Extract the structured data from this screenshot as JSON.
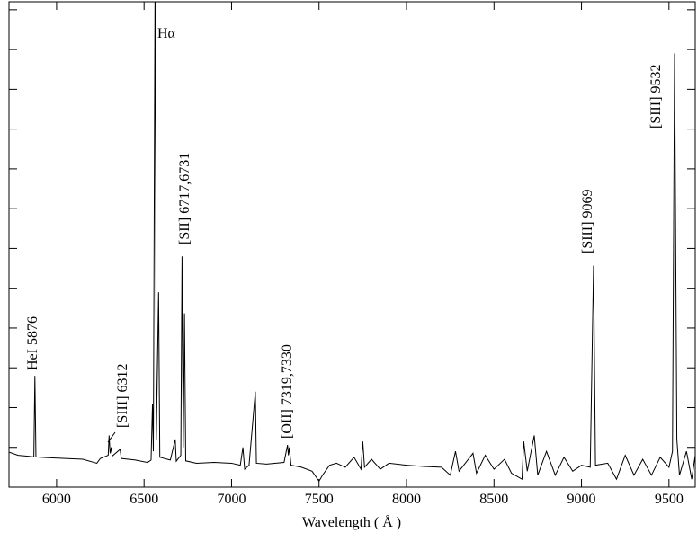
{
  "chart_data": {
    "type": "line",
    "x_label": "Wavelength ( Å )",
    "xlim": [
      5728,
      9650
    ],
    "xticks": [
      6000,
      6500,
      7000,
      7500,
      8000,
      8500,
      9000,
      9500
    ],
    "ylim": [
      0,
      12.2
    ],
    "yticks": [
      1,
      2,
      3,
      4,
      5,
      6,
      7,
      8,
      9,
      10,
      11,
      12
    ],
    "color": "#000000",
    "annotations": [
      "HeI 5876",
      "[SIII] 6312",
      "Hα",
      "[SII] 6717,6731",
      "[OII] 7319,7330",
      "[SIII] 9069",
      "[SIII] 9532"
    ],
    "x": [
      5728,
      5780,
      5830,
      5870,
      5876,
      5882,
      5950,
      6050,
      6150,
      6230,
      6250,
      6295,
      6300,
      6306,
      6312,
      6318,
      6363,
      6370,
      6450,
      6520,
      6540,
      6548,
      6553,
      6563,
      6570,
      6583,
      6590,
      6650,
      6678,
      6684,
      6710,
      6717,
      6724,
      6731,
      6738,
      6800,
      6900,
      7000,
      7050,
      7065,
      7075,
      7100,
      7136,
      7142,
      7200,
      7300,
      7320,
      7325,
      7330,
      7340,
      7400,
      7460,
      7500,
      7520,
      7560,
      7600,
      7650,
      7700,
      7740,
      7750,
      7760,
      7800,
      7850,
      7900,
      8000,
      8100,
      8200,
      8250,
      8280,
      8300,
      8380,
      8400,
      8450,
      8500,
      8560,
      8600,
      8660,
      8670,
      8690,
      8730,
      8750,
      8800,
      8850,
      8900,
      8950,
      9000,
      9050,
      9069,
      9080,
      9150,
      9200,
      9250,
      9300,
      9350,
      9400,
      9450,
      9500,
      9520,
      9532,
      9545,
      9560,
      9600,
      9630,
      9650
    ],
    "values": [
      0.88,
      0.8,
      0.78,
      0.76,
      2.8,
      0.76,
      0.74,
      0.72,
      0.7,
      0.6,
      0.72,
      0.8,
      1.3,
      0.85,
      1.0,
      0.78,
      0.95,
      0.72,
      0.68,
      0.62,
      0.68,
      2.08,
      0.9,
      13,
      1.2,
      4.9,
      0.75,
      0.68,
      1.2,
      0.65,
      0.8,
      5.8,
      1.0,
      4.37,
      0.66,
      0.6,
      0.62,
      0.6,
      0.55,
      1.0,
      0.45,
      0.55,
      2.4,
      0.6,
      0.58,
      0.62,
      1.06,
      0.8,
      1.0,
      0.55,
      0.5,
      0.4,
      0.15,
      0.3,
      0.55,
      0.6,
      0.5,
      0.75,
      0.45,
      1.15,
      0.5,
      0.7,
      0.45,
      0.6,
      0.55,
      0.52,
      0.5,
      0.3,
      0.9,
      0.4,
      0.85,
      0.35,
      0.8,
      0.45,
      0.7,
      0.35,
      0.2,
      1.15,
      0.4,
      1.3,
      0.3,
      0.9,
      0.3,
      0.75,
      0.4,
      0.55,
      0.5,
      5.57,
      0.55,
      0.6,
      0.2,
      0.8,
      0.3,
      0.7,
      0.3,
      0.75,
      0.5,
      0.9,
      10.9,
      1.2,
      0.3,
      0.9,
      0.2,
      0.8
    ]
  }
}
